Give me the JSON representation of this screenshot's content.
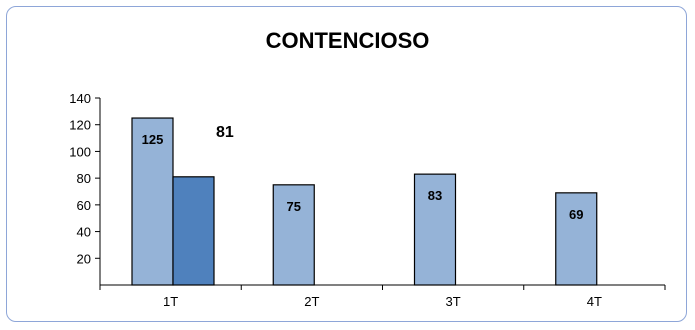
{
  "chart_data": {
    "type": "bar",
    "title": "CONTENCIOSO",
    "xlabel": "",
    "ylabel": "",
    "categories": [
      "1T",
      "2T",
      "3T",
      "4T"
    ],
    "series": [
      {
        "values": [
          125,
          75,
          83,
          69
        ],
        "color": "#95b3d7"
      },
      {
        "values": [
          81,
          null,
          null,
          null
        ],
        "color": "#4f81bd"
      }
    ],
    "yticks": [
      20,
      40,
      60,
      80,
      100,
      120,
      140
    ],
    "ylim": [
      0,
      140
    ],
    "grid": false,
    "legend": "none"
  }
}
